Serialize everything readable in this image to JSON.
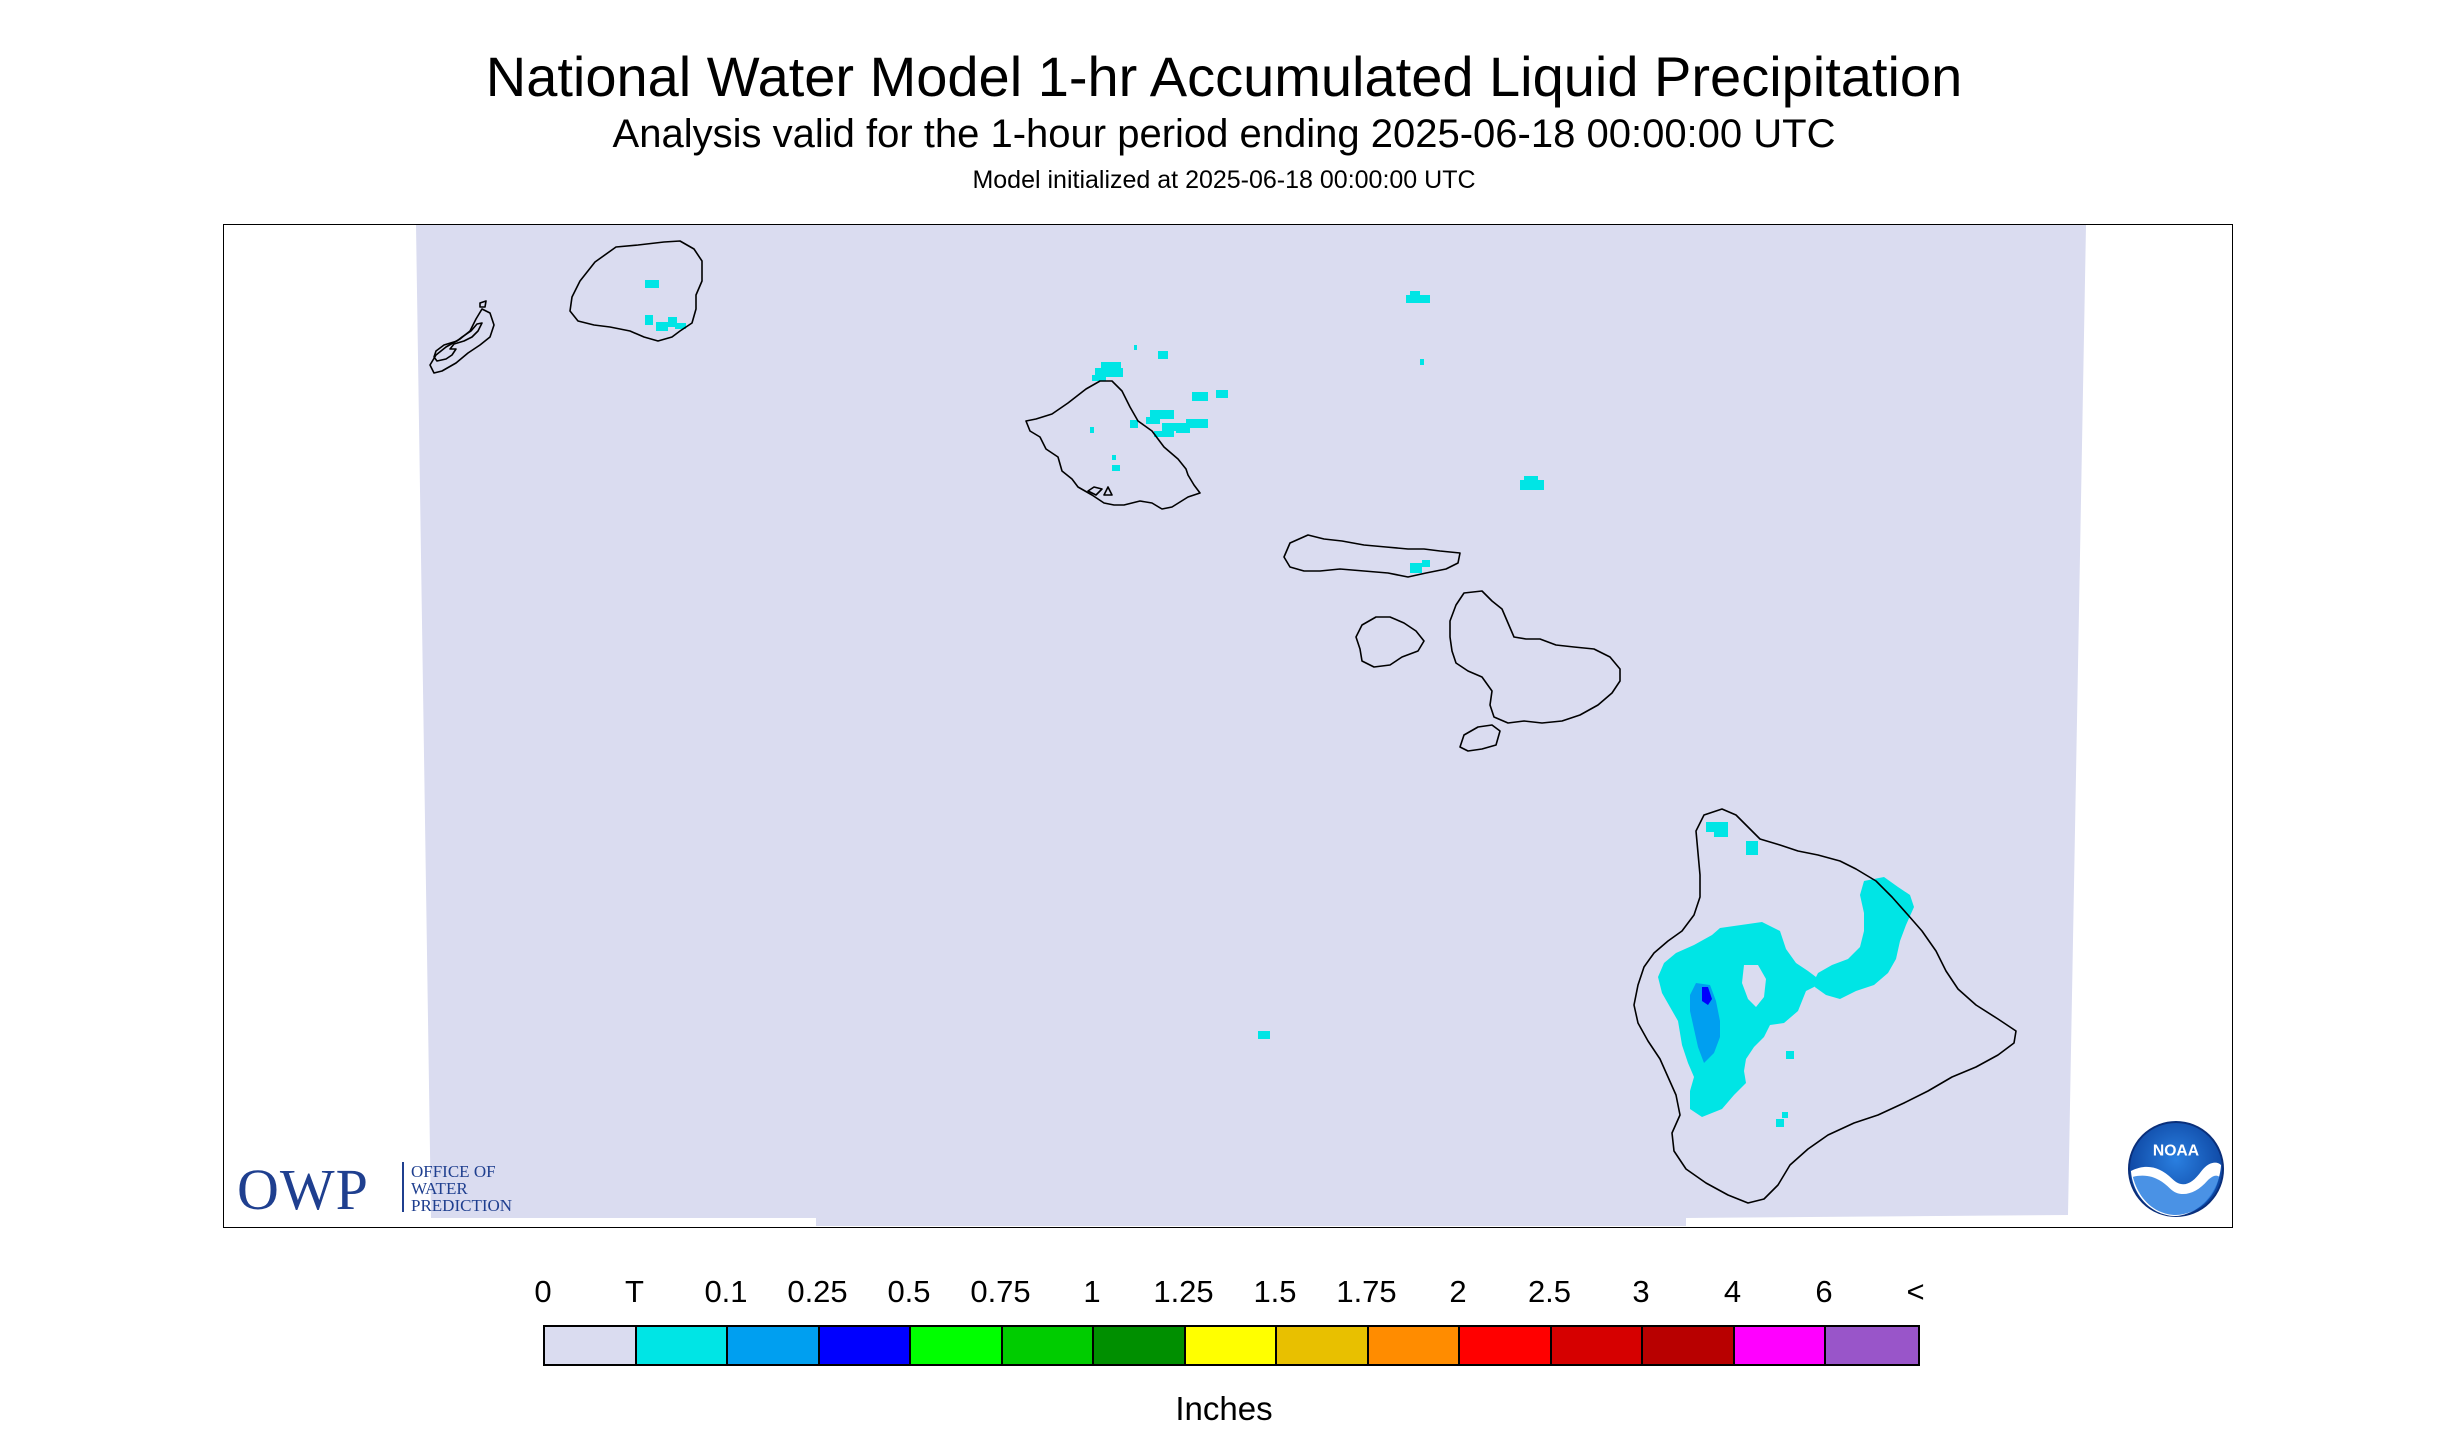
{
  "title": "National Water Model 1-hr Accumulated Liquid Precipitation",
  "subtitle": "Analysis valid for the 1-hour period ending 2025-06-18 00:00:00 UTC",
  "init_line": "Model initialized at 2025-06-18 00:00:00 UTC",
  "map": {
    "region": "Hawaiian Islands",
    "background_color": "#dadcf0",
    "outline_color": "#000000"
  },
  "logos": {
    "owp": {
      "mark": "OWP",
      "line1": "OFFICE OF",
      "line2": "WATER",
      "line3": "PREDICTION"
    },
    "noaa": {
      "mark": "NOAA"
    }
  },
  "legend": {
    "units": "Inches",
    "labels": [
      "0",
      "T",
      "0.1",
      "0.25",
      "0.5",
      "0.75",
      "1",
      "1.25",
      "1.5",
      "1.75",
      "2",
      "2.5",
      "3",
      "4",
      "6",
      "<"
    ],
    "colors": [
      "#dadcf0",
      "#00e5e5",
      "#009ff0",
      "#0000ff",
      "#00ff00",
      "#00cc00",
      "#008f00",
      "#ffff00",
      "#e8c000",
      "#ff8c00",
      "#ff0000",
      "#d60000",
      "#b80000",
      "#ff00ff",
      "#9955c9"
    ]
  }
}
